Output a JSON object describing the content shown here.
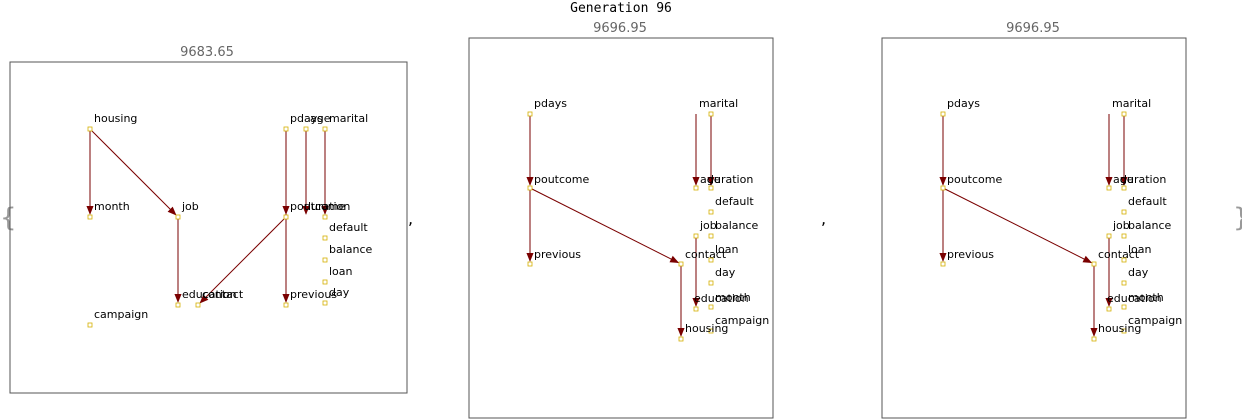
{
  "title": "Generation 96",
  "colors": {
    "edge": "#7a0000",
    "node_stroke": "#d4b000",
    "node_fill": "#ffffff",
    "frame": "#555555"
  },
  "panels": [
    {
      "score": "9683.65",
      "nodes": [
        {
          "id": "housing",
          "label": "housing"
        },
        {
          "id": "month",
          "label": "month"
        },
        {
          "id": "job",
          "label": "job"
        },
        {
          "id": "education",
          "label": "education"
        },
        {
          "id": "contact",
          "label": "contact"
        },
        {
          "id": "campaign",
          "label": "campaign"
        },
        {
          "id": "pdays",
          "label": "pdays"
        },
        {
          "id": "age",
          "label": "age"
        },
        {
          "id": "marital",
          "label": "marital"
        },
        {
          "id": "poutcome",
          "label": "poutcome"
        },
        {
          "id": "previous",
          "label": "previous"
        },
        {
          "id": "duration",
          "label": "duration"
        },
        {
          "id": "default",
          "label": "default"
        },
        {
          "id": "balance",
          "label": "balance"
        },
        {
          "id": "loan",
          "label": "loan"
        },
        {
          "id": "day",
          "label": "day"
        }
      ],
      "edges": [
        [
          "housing",
          "month"
        ],
        [
          "housing",
          "job"
        ],
        [
          "job",
          "education"
        ],
        [
          "pdays",
          "poutcome"
        ],
        [
          "pdays",
          "previous"
        ],
        [
          "age",
          "age"
        ],
        [
          "marital",
          "duration"
        ],
        [
          "poutcome",
          "contact"
        ]
      ]
    },
    {
      "score": "9696.95",
      "nodes": [
        {
          "id": "pdays",
          "label": "pdays"
        },
        {
          "id": "poutcome",
          "label": "poutcome"
        },
        {
          "id": "previous",
          "label": "previous"
        },
        {
          "id": "marital",
          "label": "marital"
        },
        {
          "id": "age",
          "label": "age"
        },
        {
          "id": "duration",
          "label": "duration"
        },
        {
          "id": "default",
          "label": "default"
        },
        {
          "id": "job",
          "label": "job"
        },
        {
          "id": "balance",
          "label": "balance"
        },
        {
          "id": "contact",
          "label": "contact"
        },
        {
          "id": "loan",
          "label": "loan"
        },
        {
          "id": "day",
          "label": "day"
        },
        {
          "id": "education",
          "label": "education"
        },
        {
          "id": "month",
          "label": "month"
        },
        {
          "id": "campaign",
          "label": "campaign"
        },
        {
          "id": "housing",
          "label": "housing"
        }
      ],
      "edges": [
        [
          "pdays",
          "poutcome"
        ],
        [
          "poutcome",
          "previous"
        ],
        [
          "poutcome",
          "contact"
        ],
        [
          "marital",
          "age"
        ],
        [
          "marital",
          "duration"
        ],
        [
          "job",
          "education"
        ],
        [
          "contact",
          "housing"
        ]
      ]
    },
    {
      "score": "9696.95",
      "nodes": [
        {
          "id": "pdays",
          "label": "pdays"
        },
        {
          "id": "poutcome",
          "label": "poutcome"
        },
        {
          "id": "previous",
          "label": "previous"
        },
        {
          "id": "marital",
          "label": "marital"
        },
        {
          "id": "age",
          "label": "age"
        },
        {
          "id": "duration",
          "label": "duration"
        },
        {
          "id": "default",
          "label": "default"
        },
        {
          "id": "job",
          "label": "job"
        },
        {
          "id": "balance",
          "label": "balance"
        },
        {
          "id": "contact",
          "label": "contact"
        },
        {
          "id": "loan",
          "label": "loan"
        },
        {
          "id": "day",
          "label": "day"
        },
        {
          "id": "education",
          "label": "education"
        },
        {
          "id": "month",
          "label": "month"
        },
        {
          "id": "campaign",
          "label": "campaign"
        },
        {
          "id": "housing",
          "label": "housing"
        }
      ],
      "edges": [
        [
          "pdays",
          "poutcome"
        ],
        [
          "poutcome",
          "previous"
        ],
        [
          "poutcome",
          "contact"
        ],
        [
          "marital",
          "age"
        ],
        [
          "marital",
          "duration"
        ],
        [
          "job",
          "education"
        ],
        [
          "contact",
          "housing"
        ]
      ]
    }
  ],
  "punctuation": {
    "open": "{",
    "close": "}",
    "separator": ","
  }
}
